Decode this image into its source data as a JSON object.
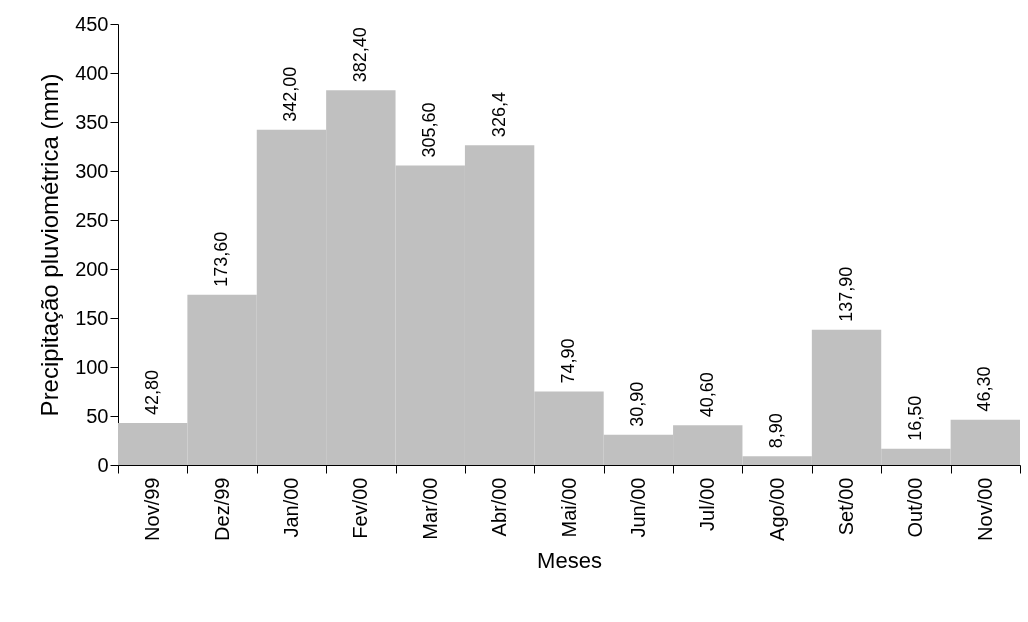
{
  "chart_data": {
    "type": "bar",
    "xlabel": "Meses",
    "ylabel": "Precipitação pluviométrica (mm)",
    "categories": [
      "Nov/99",
      "Dez/99",
      "Jan/00",
      "Fev/00",
      "Mar/00",
      "Abr/00",
      "Mai/00",
      "Jun/00",
      "Jul/00",
      "Ago/00",
      "Set/00",
      "Out/00",
      "Nov/00"
    ],
    "values": [
      42.8,
      173.6,
      342,
      382.4,
      305.6,
      326.4,
      74.9,
      30.9,
      40.6,
      8.9,
      137.9,
      16.5,
      46.3
    ],
    "value_labels": [
      "42,80",
      "173,60",
      "342,00",
      "382,40",
      "305,60",
      "326,4",
      "74,90",
      "30,90",
      "40,60",
      "8,90",
      "137,90",
      "16,50",
      "46,30"
    ],
    "color": "#c0c0c0",
    "ylim": [
      0,
      450
    ],
    "yticks": [
      0,
      50,
      100,
      150,
      200,
      250,
      300,
      350,
      400,
      450
    ],
    "grid": false
  }
}
